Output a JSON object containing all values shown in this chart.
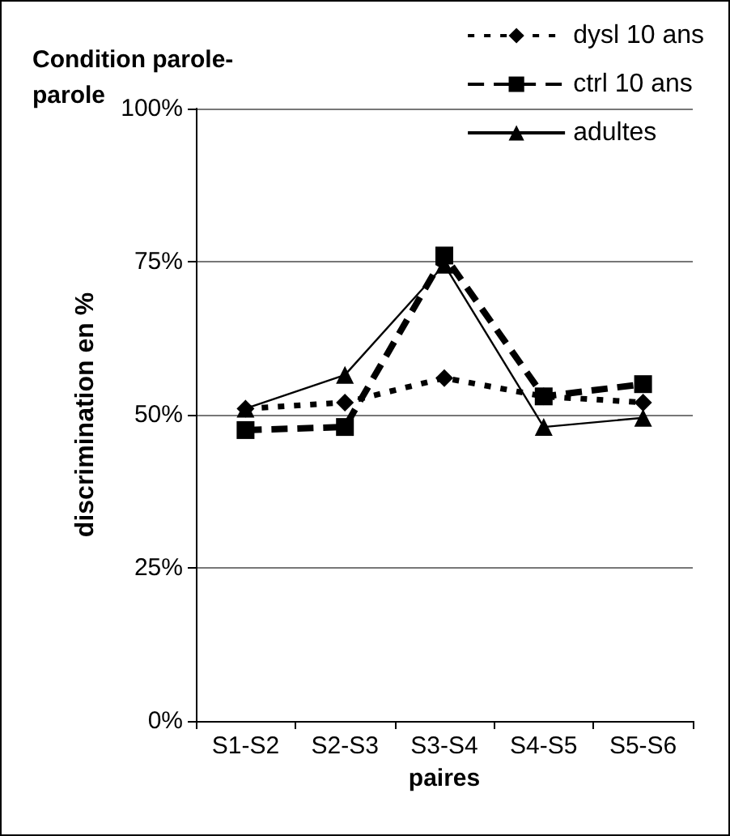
{
  "chart_data": {
    "type": "line",
    "title": "Condition parole-parole",
    "xlabel": "paires",
    "ylabel": "discrimination en %",
    "categories": [
      "S1-S2",
      "S2-S3",
      "S3-S4",
      "S4-S5",
      "S5-S6"
    ],
    "series": [
      {
        "name": "dysl 10 ans",
        "color": "#000000",
        "marker": "diamond",
        "line_style": "dotted",
        "values": [
          51,
          52,
          56,
          53,
          52
        ]
      },
      {
        "name": "ctrl 10 ans",
        "color": "#000000",
        "marker": "square",
        "line_style": "dashed",
        "values": [
          47.5,
          48,
          76,
          53,
          55
        ]
      },
      {
        "name": "adultes",
        "color": "#000000",
        "marker": "triangle",
        "line_style": "solid",
        "values": [
          51,
          56.5,
          74.5,
          48,
          49.5
        ]
      }
    ],
    "ylim": [
      0,
      100
    ],
    "yticks": [
      {
        "value": 0,
        "label": "0%"
      },
      {
        "value": 25,
        "label": "25%"
      },
      {
        "value": 50,
        "label": "50%"
      },
      {
        "value": 75,
        "label": "75%"
      },
      {
        "value": 100,
        "label": "100%"
      }
    ],
    "grid": "y",
    "legend": "top right"
  }
}
